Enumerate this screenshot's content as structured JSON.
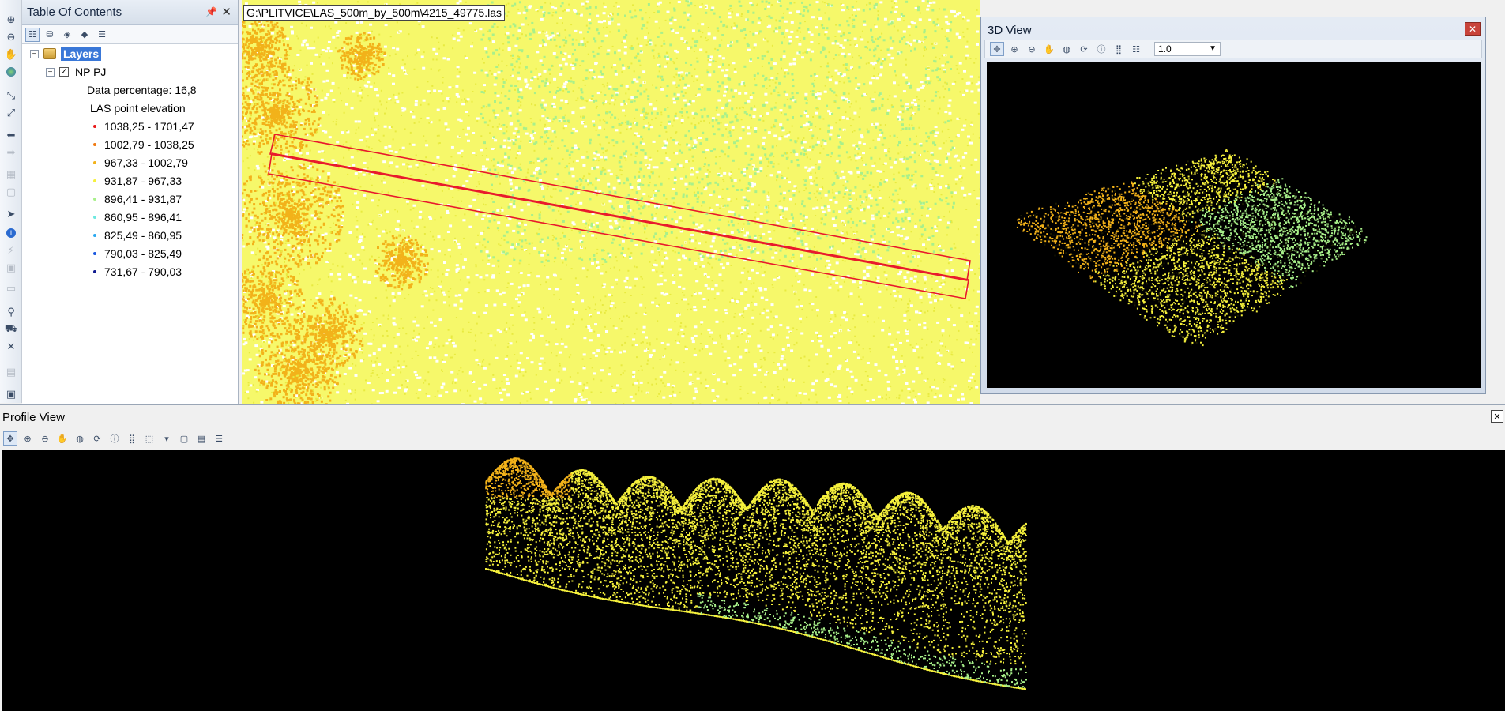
{
  "toc": {
    "title": "Table Of Contents",
    "layers_label": "Layers",
    "layer_name": "NP PJ",
    "data_percentage": "Data percentage: 16,8",
    "legend_title": "LAS point elevation",
    "legend": [
      {
        "label": "1038,25 - 1701,47",
        "color": "#e81919"
      },
      {
        "label": "1002,79 - 1038,25",
        "color": "#f07a12"
      },
      {
        "label": "967,33 - 1002,79",
        "color": "#f2b21a"
      },
      {
        "label": "931,87 - 967,33",
        "color": "#f5f03c"
      },
      {
        "label": "896,41 - 931,87",
        "color": "#a8f08a"
      },
      {
        "label": "860,95 - 896,41",
        "color": "#6ee8e0"
      },
      {
        "label": "825,49 - 860,95",
        "color": "#2aa8f0"
      },
      {
        "label": "790,03 - 825,49",
        "color": "#1a58e0"
      },
      {
        "label": "731,67 - 790,03",
        "color": "#101a90"
      }
    ]
  },
  "map": {
    "path": "G:\\PLITVICE\\LAS_500m_by_500m\\4215_49775.las"
  },
  "view3d": {
    "title": "3D View",
    "zoom_value": "1.0"
  },
  "profile": {
    "title": "Profile View"
  },
  "colors": {
    "profile_line": "#e8192c",
    "elevation_high": "#f2b21a",
    "elevation_mid": "#f5f03c",
    "elevation_low": "#a8f08a"
  }
}
